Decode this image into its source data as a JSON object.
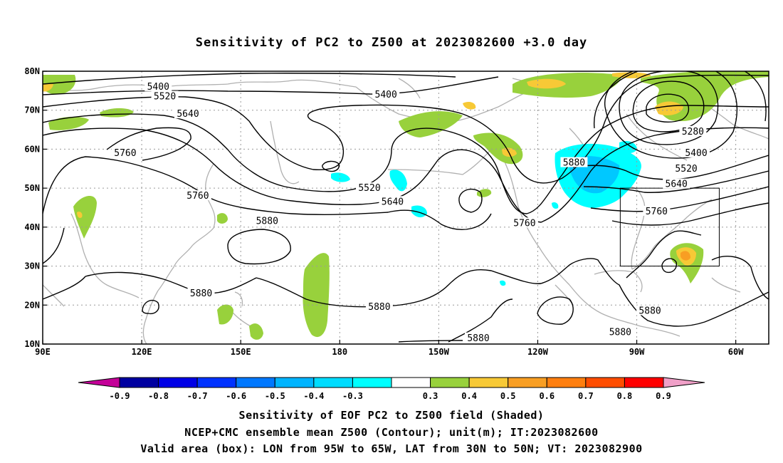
{
  "title": "Sensitivity of PC2 to Z500 at 2023082600 +3.0 day",
  "axes": {
    "lon_ticks": [
      "90E",
      "120E",
      "150E",
      "180",
      "150W",
      "120W",
      "90W",
      "60W"
    ],
    "lat_ticks": [
      "10N",
      "20N",
      "30N",
      "40N",
      "50N",
      "60N",
      "70N",
      "80N"
    ],
    "lon_range_deg_east": [
      90,
      310
    ],
    "lat_range_deg": [
      10,
      80
    ],
    "grid": "dotted"
  },
  "contours": {
    "unit": "m",
    "labels": [
      {
        "text": "5400",
        "lon": 125,
        "lat": 76
      },
      {
        "text": "5520",
        "lon": 127,
        "lat": 73.5
      },
      {
        "text": "5640",
        "lon": 134,
        "lat": 69
      },
      {
        "text": "5400",
        "lon": 194,
        "lat": 74
      },
      {
        "text": "5760",
        "lon": 115,
        "lat": 59
      },
      {
        "text": "5760",
        "lon": 137,
        "lat": 48
      },
      {
        "text": "5520",
        "lon": 189,
        "lat": 50
      },
      {
        "text": "5640",
        "lon": 196,
        "lat": 46.5
      },
      {
        "text": "5880",
        "lon": 251,
        "lat": 56.5
      },
      {
        "text": "5760",
        "lon": 236,
        "lat": 41
      },
      {
        "text": "5880",
        "lon": 158,
        "lat": 41.5
      },
      {
        "text": "5880",
        "lon": 138,
        "lat": 23
      },
      {
        "text": "5880",
        "lon": 192,
        "lat": 19.5
      },
      {
        "text": "5880",
        "lon": 222,
        "lat": 11.5
      },
      {
        "text": "5880",
        "lon": 265,
        "lat": 13
      },
      {
        "text": "5880",
        "lon": 274,
        "lat": 18.5
      },
      {
        "text": "5280",
        "lon": 287,
        "lat": 64.5
      },
      {
        "text": "5400",
        "lon": 288,
        "lat": 59
      },
      {
        "text": "5520",
        "lon": 285,
        "lat": 55
      },
      {
        "text": "5640",
        "lon": 282,
        "lat": 51
      },
      {
        "text": "5760",
        "lon": 276,
        "lat": 44
      }
    ]
  },
  "shading": {
    "colors": {
      "pos_0_3": "#98d13c",
      "pos_0_4": "#f7c936",
      "pos_0_5": "#f89e23",
      "neg_0_3": "#00ffff",
      "neg_0_4": "#00c8ff"
    }
  },
  "valid_box": {
    "lon_west": 265,
    "lon_east": 295,
    "lat_south": 30,
    "lat_north": 50
  },
  "colorbar": {
    "labels": [
      "-0.9",
      "-0.8",
      "-0.7",
      "-0.6",
      "-0.5",
      "-0.4",
      "-0.3",
      "0.3",
      "0.4",
      "0.5",
      "0.6",
      "0.7",
      "0.8",
      "0.9"
    ],
    "colors": [
      "#c40098",
      "#0000a0",
      "#0000e6",
      "#0032ff",
      "#0078ff",
      "#00b4ff",
      "#00dcff",
      "#00ffff",
      "#ffffff",
      "#98d13c",
      "#f7c936",
      "#f89e23",
      "#ff7f0f",
      "#ff4d00",
      "#ff0000",
      "#f0a0c8"
    ]
  },
  "footer": {
    "line1": "Sensitivity of EOF PC2 to Z500 field (Shaded)",
    "line2": "NCEP+CMC ensemble mean Z500 (Contour); unit(m); IT:2023082600",
    "line3": "Valid area (box): LON from 95W to 65W, LAT from 30N to 50N; VT: 2023082900"
  }
}
